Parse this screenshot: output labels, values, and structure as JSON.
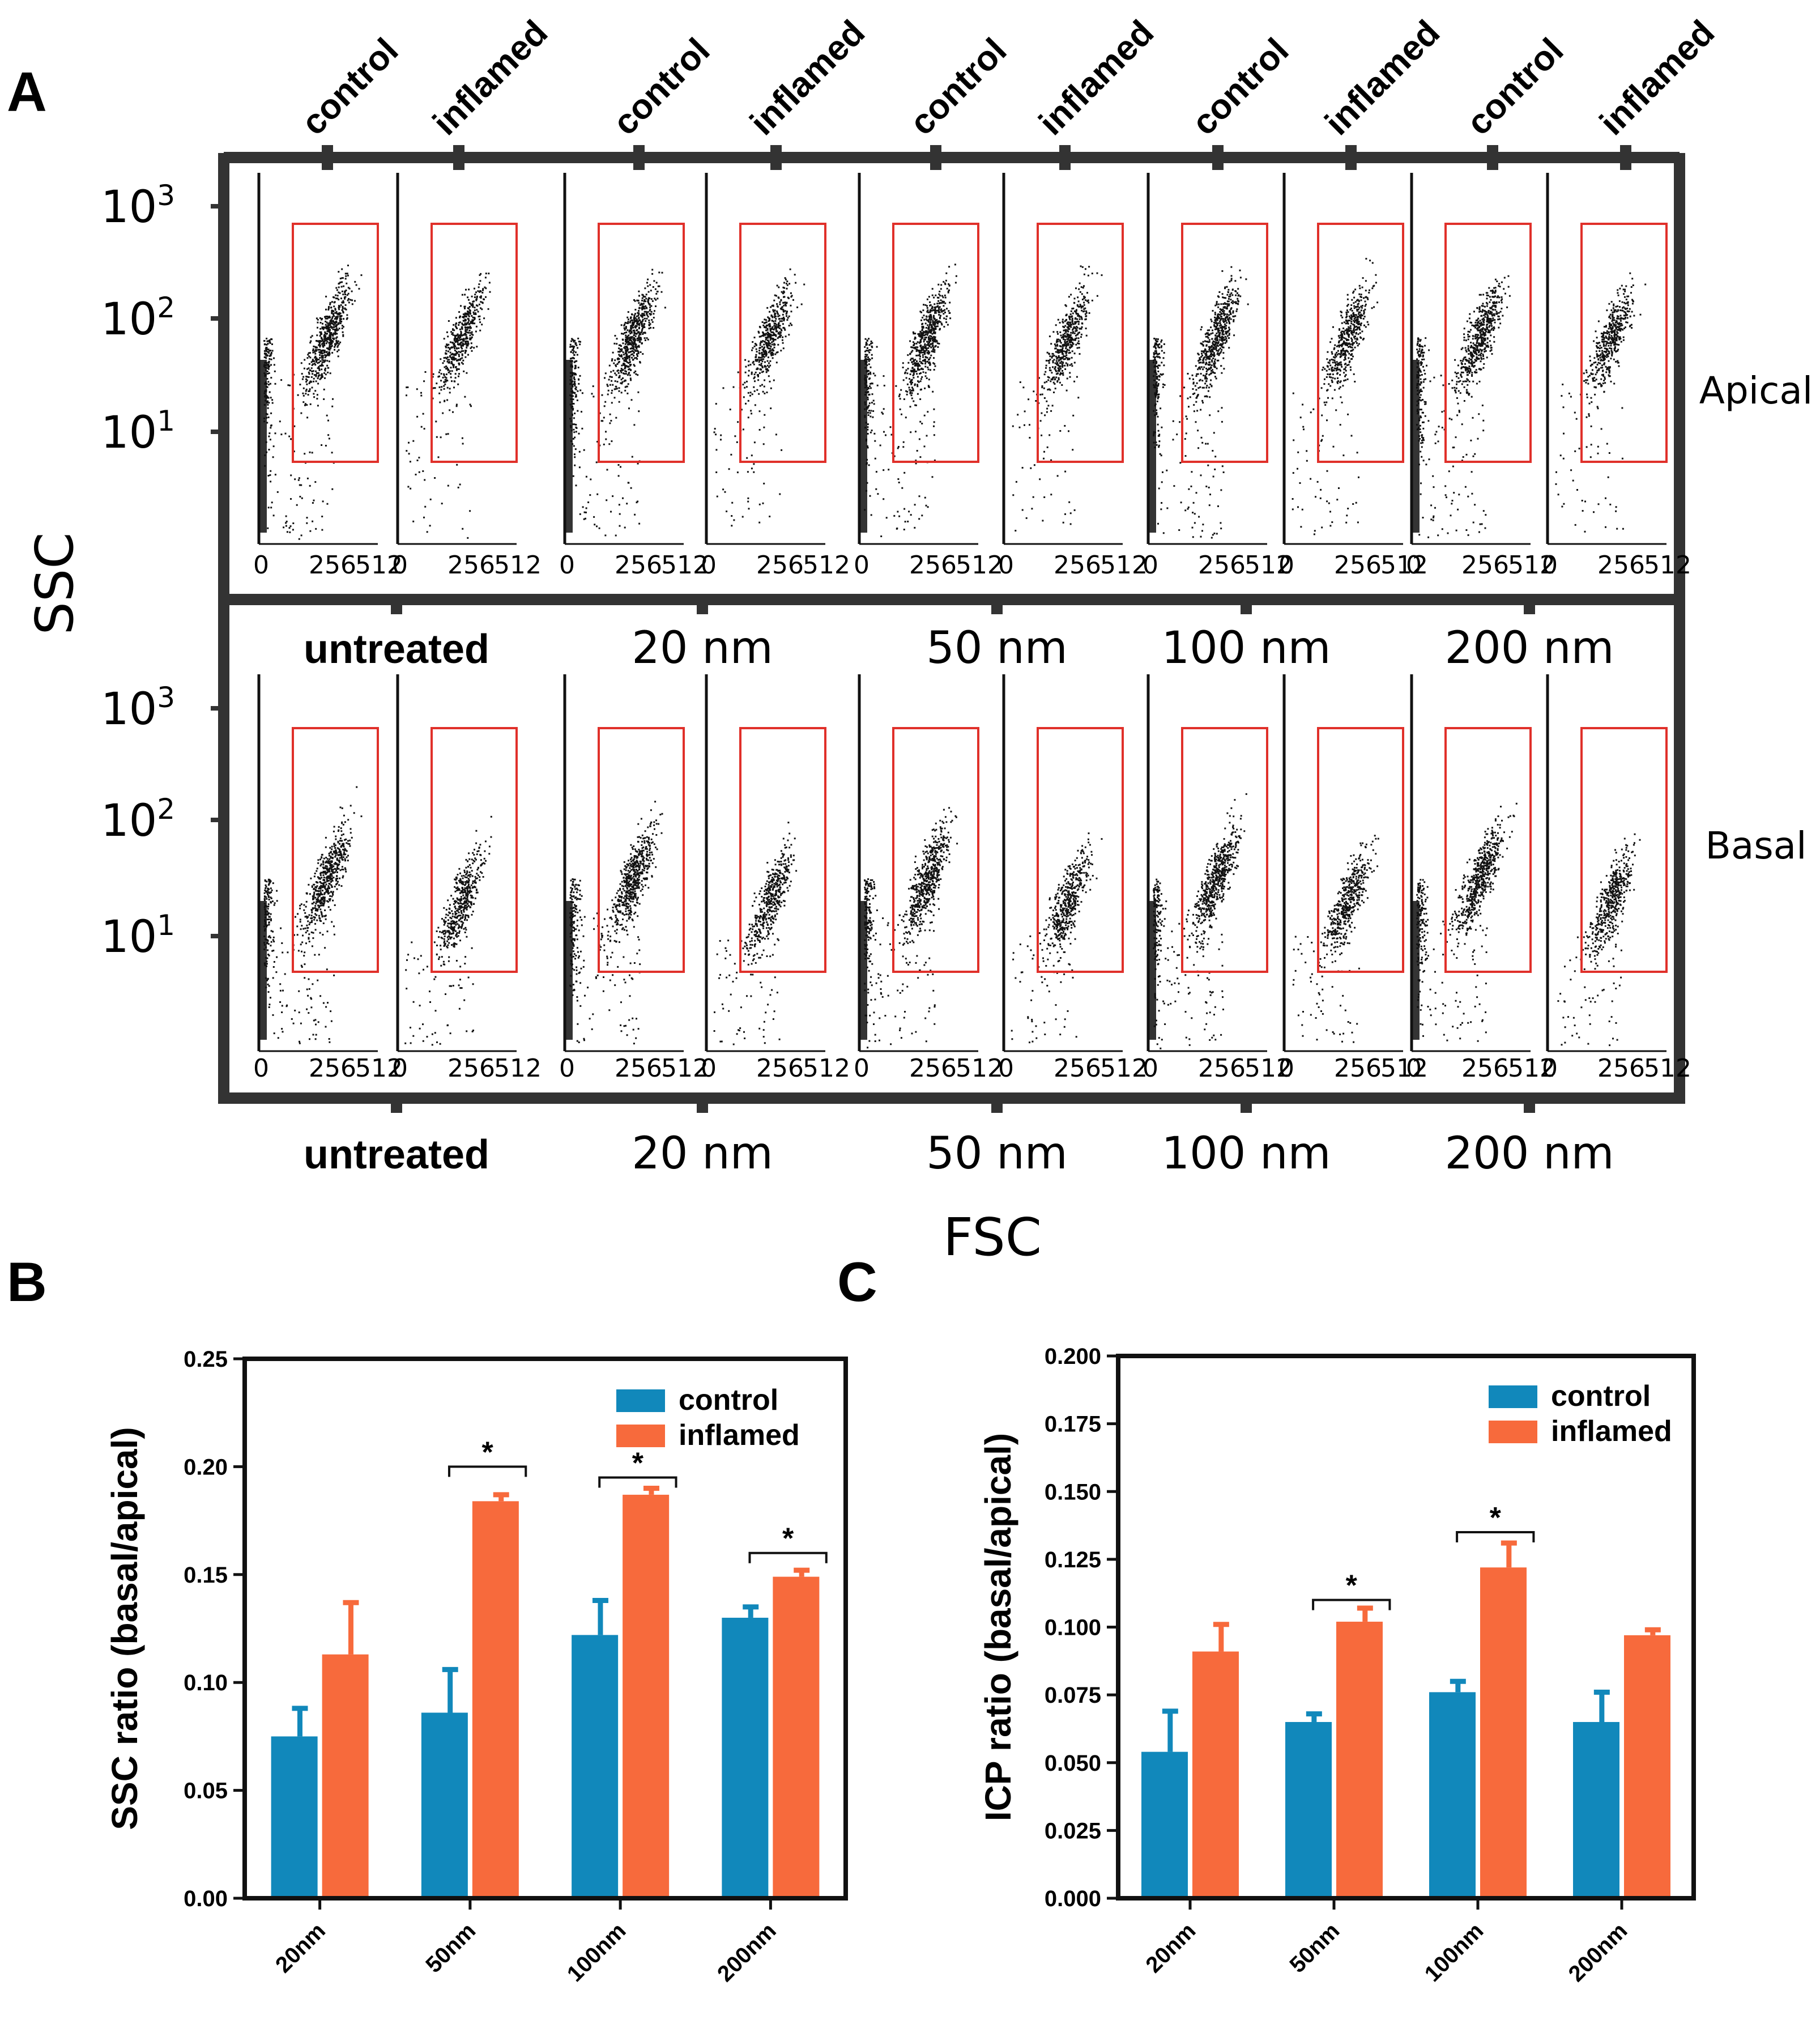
{
  "panel_a": {
    "letter": "A",
    "column_labels": [
      "control",
      "inflamed",
      "control",
      "inflamed",
      "control",
      "inflamed",
      "control",
      "inflamed",
      "control",
      "inflamed"
    ],
    "treatments": [
      "untreated",
      "20 nm",
      "50 nm",
      "100 nm",
      "200 nm"
    ],
    "row_labels": [
      "Apical",
      "Basal"
    ],
    "y_axis_label": "SSC",
    "x_axis_label": "FSC",
    "y_ticks": [
      {
        "base": "10",
        "exp": "3"
      },
      {
        "base": "10",
        "exp": "2"
      },
      {
        "base": "10",
        "exp": "1"
      }
    ],
    "x_ticks": [
      "0",
      "256",
      "512"
    ]
  },
  "chart_data": [
    {
      "type": "bar",
      "panel": "B",
      "title": "",
      "xlabel": "",
      "ylabel": "SSC ratio (basal/apical)",
      "categories": [
        "20nm",
        "50nm",
        "100nm",
        "200nm"
      ],
      "series": [
        {
          "name": "control",
          "color": "#1188bb",
          "values": [
            0.075,
            0.086,
            0.122,
            0.13
          ],
          "errors": [
            0.013,
            0.02,
            0.016,
            0.005
          ]
        },
        {
          "name": "inflamed",
          "color": "#f76a3c",
          "values": [
            0.113,
            0.184,
            0.187,
            0.149
          ],
          "errors": [
            0.024,
            0.003,
            0.003,
            0.003
          ]
        }
      ],
      "ylim": [
        0,
        0.25
      ],
      "yticks": [
        "0.00",
        "0.05",
        "0.10",
        "0.15",
        "0.20",
        "0.25"
      ],
      "legend_position": "top-right",
      "significance": [
        {
          "category": "50nm",
          "label": "*",
          "height": 0.2
        },
        {
          "category": "100nm",
          "label": "*",
          "height": 0.195
        },
        {
          "category": "200nm",
          "label": "*",
          "height": 0.16
        }
      ]
    },
    {
      "type": "bar",
      "panel": "C",
      "title": "",
      "xlabel": "",
      "ylabel": "ICP ratio (basal/apical)",
      "categories": [
        "20nm",
        "50nm",
        "100nm",
        "200nm"
      ],
      "series": [
        {
          "name": "control",
          "color": "#1188bb",
          "values": [
            0.054,
            0.065,
            0.076,
            0.065
          ],
          "errors": [
            0.015,
            0.003,
            0.004,
            0.011
          ]
        },
        {
          "name": "inflamed",
          "color": "#f76a3c",
          "values": [
            0.091,
            0.102,
            0.122,
            0.097
          ],
          "errors": [
            0.01,
            0.005,
            0.009,
            0.002
          ]
        }
      ],
      "ylim": [
        0,
        0.2
      ],
      "yticks": [
        "0.000",
        "0.025",
        "0.050",
        "0.075",
        "0.100",
        "0.125",
        "0.150",
        "0.175",
        "0.200"
      ],
      "legend_position": "top-right",
      "significance": [
        {
          "category": "50nm",
          "label": "*",
          "height": 0.11
        },
        {
          "category": "100nm",
          "label": "*",
          "height": 0.135
        }
      ]
    }
  ]
}
